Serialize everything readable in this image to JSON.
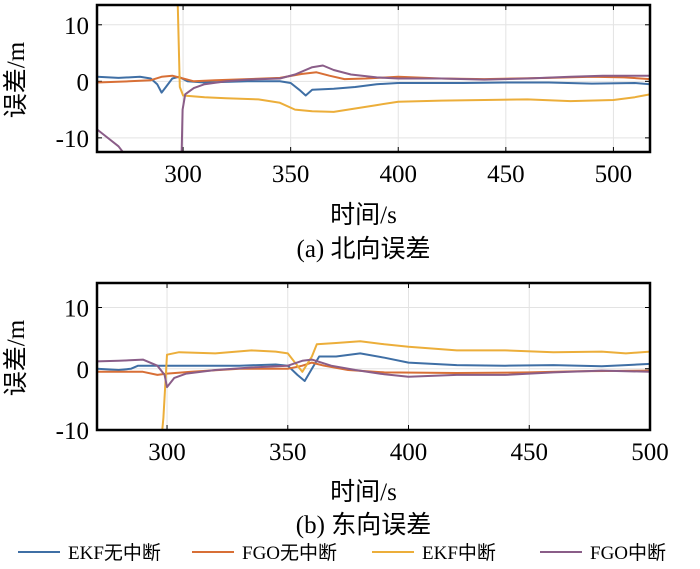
{
  "chart_data": [
    {
      "type": "line",
      "title": "(a) 北向误差",
      "xlabel": "时间/s",
      "ylabel": "误差/m",
      "xlim": [
        260,
        517
      ],
      "ylim": [
        -12.5,
        13.5
      ],
      "xticks": [
        300,
        350,
        400,
        450,
        500
      ],
      "xtick_labels": [
        "300",
        "350",
        "400",
        "450",
        "500"
      ],
      "yticks": [
        -10,
        0,
        10
      ],
      "ytick_labels": [
        "-10",
        "0",
        "10"
      ],
      "grid": true,
      "series": [
        {
          "name": "EKF无中断",
          "color": "#3f6fa5",
          "points": [
            [
              260,
              0.8
            ],
            [
              270,
              0.6
            ],
            [
              280,
              0.8
            ],
            [
              285,
              0.5
            ],
            [
              288,
              -0.5
            ],
            [
              290,
              -2
            ],
            [
              292,
              -1
            ],
            [
              295,
              0.5
            ],
            [
              298,
              0.8
            ],
            [
              302,
              0
            ],
            [
              310,
              -0.2
            ],
            [
              330,
              0
            ],
            [
              345,
              0
            ],
            [
              350,
              -0.3
            ],
            [
              354,
              -1.5
            ],
            [
              357,
              -2.5
            ],
            [
              360,
              -1.5
            ],
            [
              370,
              -1.3
            ],
            [
              380,
              -1
            ],
            [
              390,
              -0.5
            ],
            [
              400,
              -0.3
            ],
            [
              430,
              -0.3
            ],
            [
              450,
              -0.2
            ],
            [
              470,
              -0.2
            ],
            [
              490,
              -0.4
            ],
            [
              510,
              -0.3
            ],
            [
              517,
              -0.5
            ]
          ]
        },
        {
          "name": "FGO无中断",
          "color": "#d86f36",
          "points": [
            [
              260,
              -0.2
            ],
            [
              275,
              0
            ],
            [
              285,
              0.2
            ],
            [
              290,
              0.8
            ],
            [
              295,
              1
            ],
            [
              300,
              0.5
            ],
            [
              305,
              0
            ],
            [
              315,
              0.2
            ],
            [
              330,
              0.4
            ],
            [
              345,
              0.6
            ],
            [
              355,
              1.3
            ],
            [
              362,
              1.6
            ],
            [
              368,
              1
            ],
            [
              375,
              0.4
            ],
            [
              385,
              0.5
            ],
            [
              400,
              0.8
            ],
            [
              420,
              0.5
            ],
            [
              440,
              0.4
            ],
            [
              470,
              0.6
            ],
            [
              490,
              0.8
            ],
            [
              505,
              0.7
            ],
            [
              517,
              0.4
            ]
          ]
        },
        {
          "name": "EKF中断",
          "color": "#ecae3a",
          "points": [
            [
              297.5,
              14
            ],
            [
              298.5,
              -1
            ],
            [
              300,
              -2.5
            ],
            [
              310,
              -2.8
            ],
            [
              320,
              -3
            ],
            [
              335,
              -3.2
            ],
            [
              345,
              -3.8
            ],
            [
              352,
              -5
            ],
            [
              360,
              -5.3
            ],
            [
              370,
              -5.4
            ],
            [
              380,
              -4.8
            ],
            [
              390,
              -4.2
            ],
            [
              400,
              -3.6
            ],
            [
              420,
              -3.4
            ],
            [
              440,
              -3.3
            ],
            [
              460,
              -3.2
            ],
            [
              480,
              -3.5
            ],
            [
              500,
              -3.3
            ],
            [
              510,
              -2.8
            ],
            [
              517,
              -2.3
            ]
          ]
        },
        {
          "name": "FGO中断",
          "color": "#8a5d88",
          "points": [
            [
              260,
              -8.5
            ],
            [
              265,
              -10
            ],
            [
              270,
              -11.5
            ],
            [
              273,
              -13
            ],
            [
              null,
              null
            ],
            [
              299.3,
              -13
            ],
            [
              299.8,
              -5
            ],
            [
              301,
              -2.3
            ],
            [
              305,
              -1.2
            ],
            [
              310,
              -0.5
            ],
            [
              320,
              0
            ],
            [
              330,
              0.3
            ],
            [
              345,
              0.5
            ],
            [
              352,
              1.2
            ],
            [
              360,
              2.5
            ],
            [
              365,
              2.8
            ],
            [
              370,
              2
            ],
            [
              378,
              1.2
            ],
            [
              390,
              0.7
            ],
            [
              400,
              0.5
            ],
            [
              420,
              0.5
            ],
            [
              440,
              0.3
            ],
            [
              460,
              0.5
            ],
            [
              480,
              0.8
            ],
            [
              495,
              1
            ],
            [
              517,
              1
            ]
          ]
        }
      ]
    },
    {
      "type": "line",
      "title": "(b) 东向误差",
      "xlabel": "时间/s",
      "ylabel": "误差/m",
      "xlim": [
        271,
        500
      ],
      "ylim": [
        -10,
        14
      ],
      "xticks": [
        300,
        350,
        400,
        450,
        500
      ],
      "xtick_labels": [
        "300",
        "350",
        "400",
        "450",
        "500"
      ],
      "yticks": [
        -10,
        0,
        10
      ],
      "ytick_labels": [
        "-10",
        "0",
        "10"
      ],
      "grid": true,
      "series": [
        {
          "name": "EKF无中断",
          "color": "#3f6fa5",
          "points": [
            [
              271,
              0
            ],
            [
              280,
              -0.2
            ],
            [
              285,
              0
            ],
            [
              288,
              0.5
            ],
            [
              298,
              0.5
            ],
            [
              310,
              0.5
            ],
            [
              330,
              0.5
            ],
            [
              345,
              0.7
            ],
            [
              350,
              0.5
            ],
            [
              354,
              -1
            ],
            [
              357,
              -2
            ],
            [
              360,
              0
            ],
            [
              363,
              2
            ],
            [
              370,
              2
            ],
            [
              380,
              2.5
            ],
            [
              390,
              1.8
            ],
            [
              400,
              1
            ],
            [
              420,
              0.6
            ],
            [
              440,
              0.5
            ],
            [
              460,
              0.6
            ],
            [
              480,
              0.4
            ],
            [
              490,
              0.6
            ],
            [
              500,
              0.8
            ]
          ]
        },
        {
          "name": "FGO无中断",
          "color": "#d86f36",
          "points": [
            [
              271,
              -0.5
            ],
            [
              290,
              -0.5
            ],
            [
              296,
              -1
            ],
            [
              300,
              -0.8
            ],
            [
              310,
              -0.5
            ],
            [
              330,
              0
            ],
            [
              350,
              0
            ],
            [
              356,
              0.5
            ],
            [
              360,
              1
            ],
            [
              365,
              0.5
            ],
            [
              375,
              -0.2
            ],
            [
              390,
              -0.6
            ],
            [
              420,
              -0.7
            ],
            [
              450,
              -0.6
            ],
            [
              470,
              -0.4
            ],
            [
              500,
              -0.3
            ]
          ]
        },
        {
          "name": "EKF中断",
          "color": "#ecae3a",
          "points": [
            [
              297.8,
              -11
            ],
            [
              298.5,
              -8
            ],
            [
              300,
              2.3
            ],
            [
              305,
              2.7
            ],
            [
              320,
              2.5
            ],
            [
              335,
              3
            ],
            [
              345,
              2.8
            ],
            [
              350,
              2.5
            ],
            [
              353,
              1
            ],
            [
              356,
              -0.5
            ],
            [
              360,
              2
            ],
            [
              362,
              4
            ],
            [
              370,
              4.2
            ],
            [
              380,
              4.5
            ],
            [
              390,
              4
            ],
            [
              400,
              3.6
            ],
            [
              420,
              3
            ],
            [
              440,
              3
            ],
            [
              460,
              2.7
            ],
            [
              480,
              2.8
            ],
            [
              490,
              2.5
            ],
            [
              500,
              2.8
            ]
          ]
        },
        {
          "name": "FGO中断",
          "color": "#8a5d88",
          "points": [
            [
              271,
              1.2
            ],
            [
              280,
              1.3
            ],
            [
              290,
              1.5
            ],
            [
              296,
              0.5
            ],
            [
              299,
              -1
            ],
            [
              300,
              -3
            ],
            [
              303,
              -1.5
            ],
            [
              308,
              -0.8
            ],
            [
              320,
              -0.2
            ],
            [
              335,
              0.2
            ],
            [
              350,
              0.5
            ],
            [
              356,
              1.3
            ],
            [
              360,
              1.5
            ],
            [
              368,
              0.5
            ],
            [
              378,
              -0.2
            ],
            [
              390,
              -0.9
            ],
            [
              400,
              -1.3
            ],
            [
              420,
              -1
            ],
            [
              440,
              -1
            ],
            [
              460,
              -0.6
            ],
            [
              480,
              -0.3
            ],
            [
              500,
              -0.5
            ]
          ]
        }
      ]
    }
  ],
  "legend": {
    "placement": "bottom",
    "items": [
      {
        "label": "EKF无中断",
        "color": "#3f6fa5"
      },
      {
        "label": "FGO无中断",
        "color": "#d86f36"
      },
      {
        "label": "EKF中断",
        "color": "#ecae3a"
      },
      {
        "label": "FGO中断",
        "color": "#8a5d88"
      }
    ]
  }
}
